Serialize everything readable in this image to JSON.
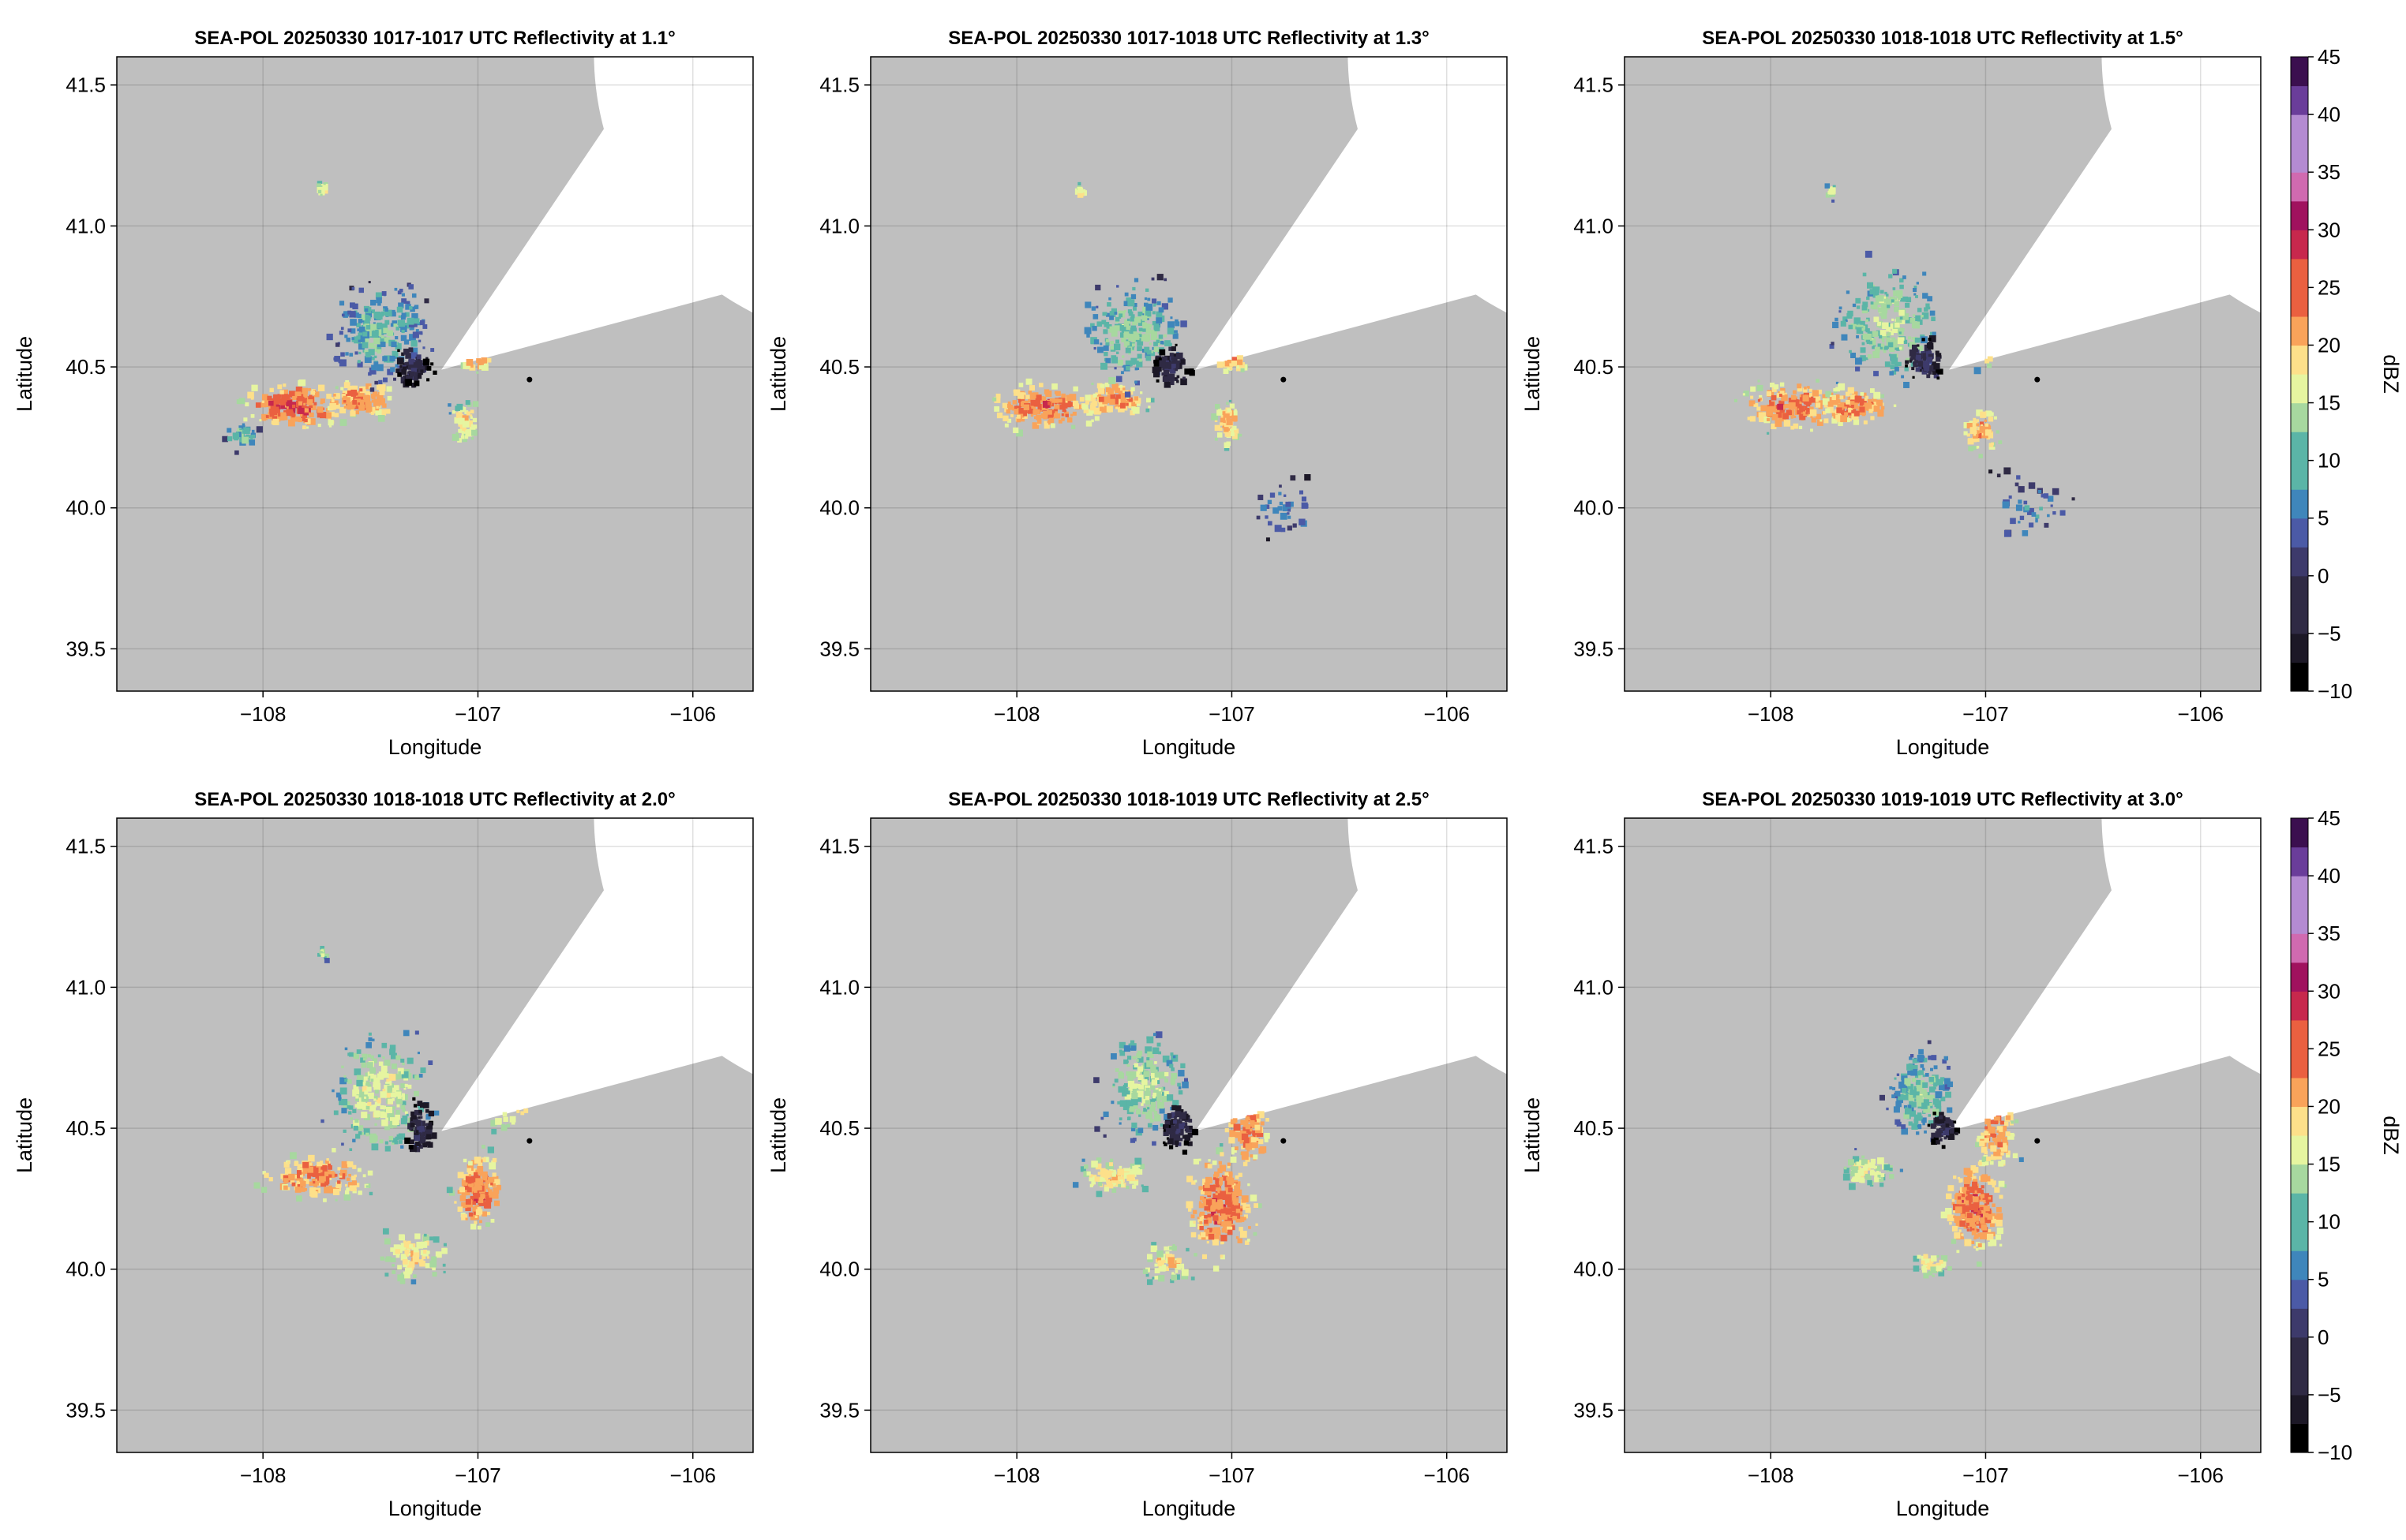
{
  "chart_data": {
    "type": "heatmap",
    "description_axes": {
      "xlabel": "Longitude",
      "ylabel": "Latitude",
      "xlim": [
        -108.68,
        -105.72
      ],
      "ylim": [
        39.35,
        41.6
      ],
      "xticks": [
        -108,
        -107,
        -106
      ],
      "yticks": [
        39.5,
        40.0,
        40.5,
        41.0,
        41.5
      ],
      "xtick_labels": [
        "−108",
        "−107",
        "−106"
      ],
      "ytick_labels": [
        "39.5",
        "40.0",
        "40.5",
        "41.0",
        "41.5"
      ],
      "grid": true
    },
    "radar": {
      "center": [
        -107.17,
        40.49
      ],
      "max_range_lat_deg": 1.03,
      "blocked_sector_deg": [
        15,
        56
      ],
      "marker": [
        -106.76,
        40.455
      ],
      "no_data_color": "#bfbfbf"
    },
    "colorbar": {
      "label": "dBZ",
      "range": [
        -10,
        45
      ],
      "ticks": [
        -10,
        -5,
        0,
        5,
        10,
        15,
        20,
        25,
        30,
        35,
        40,
        45
      ],
      "tick_labels": [
        "−10",
        "−5",
        "0",
        "5",
        "10",
        "15",
        "20",
        "25",
        "30",
        "35",
        "40",
        "45"
      ],
      "placement": "right"
    },
    "panels": [
      {
        "title": "SEA-POL 20250330 1017-1017 UTC Reflectivity at 1.1°",
        "elevation_deg": 1.1,
        "show_colorbar": false,
        "blobs": [
          {
            "lon": -107.85,
            "lat": 40.36,
            "sx": 0.17,
            "sy": 0.06,
            "peak": 29,
            "n": 180
          },
          {
            "lon": -107.55,
            "lat": 40.38,
            "sx": 0.12,
            "sy": 0.05,
            "peak": 27,
            "n": 110
          },
          {
            "lon": -107.45,
            "lat": 40.62,
            "sx": 0.17,
            "sy": 0.13,
            "peak": 14,
            "n": 230
          },
          {
            "lon": -107.3,
            "lat": 40.5,
            "sx": 0.07,
            "sy": 0.06,
            "peak": 2,
            "n": 80
          },
          {
            "lon": -107.06,
            "lat": 40.3,
            "sx": 0.05,
            "sy": 0.06,
            "peak": 22,
            "n": 60
          },
          {
            "lon": -107.0,
            "lat": 40.52,
            "sx": 0.05,
            "sy": 0.03,
            "peak": 25,
            "n": 40
          },
          {
            "lon": -107.72,
            "lat": 41.13,
            "sx": 0.02,
            "sy": 0.02,
            "peak": 21,
            "n": 14
          },
          {
            "lon": -108.1,
            "lat": 40.25,
            "sx": 0.06,
            "sy": 0.04,
            "peak": 14,
            "n": 30
          }
        ]
      },
      {
        "title": "SEA-POL 20250330 1017-1018 UTC Reflectivity at 1.3°",
        "elevation_deg": 1.3,
        "show_colorbar": false,
        "blobs": [
          {
            "lon": -107.88,
            "lat": 40.36,
            "sx": 0.17,
            "sy": 0.06,
            "peak": 28,
            "n": 180
          },
          {
            "lon": -107.55,
            "lat": 40.38,
            "sx": 0.12,
            "sy": 0.05,
            "peak": 26,
            "n": 110
          },
          {
            "lon": -107.45,
            "lat": 40.62,
            "sx": 0.18,
            "sy": 0.14,
            "peak": 15,
            "n": 240
          },
          {
            "lon": -107.28,
            "lat": 40.5,
            "sx": 0.07,
            "sy": 0.06,
            "peak": 2,
            "n": 80
          },
          {
            "lon": -107.02,
            "lat": 40.3,
            "sx": 0.05,
            "sy": 0.06,
            "peak": 24,
            "n": 60
          },
          {
            "lon": -107.0,
            "lat": 40.52,
            "sx": 0.05,
            "sy": 0.03,
            "peak": 25,
            "n": 40
          },
          {
            "lon": -107.7,
            "lat": 41.12,
            "sx": 0.02,
            "sy": 0.02,
            "peak": 20,
            "n": 14
          },
          {
            "lon": -106.75,
            "lat": 40.0,
            "sx": 0.12,
            "sy": 0.08,
            "peak": 10,
            "n": 35
          }
        ]
      },
      {
        "title": "SEA-POL 20250330 1018-1018 UTC Reflectivity at 1.5°",
        "elevation_deg": 1.5,
        "show_colorbar": true,
        "blobs": [
          {
            "lon": -107.9,
            "lat": 40.36,
            "sx": 0.17,
            "sy": 0.06,
            "peak": 28,
            "n": 180
          },
          {
            "lon": -107.6,
            "lat": 40.36,
            "sx": 0.12,
            "sy": 0.05,
            "peak": 27,
            "n": 110
          },
          {
            "lon": -107.45,
            "lat": 40.65,
            "sx": 0.18,
            "sy": 0.15,
            "peak": 17,
            "n": 260
          },
          {
            "lon": -107.28,
            "lat": 40.52,
            "sx": 0.07,
            "sy": 0.06,
            "peak": 3,
            "n": 80
          },
          {
            "lon": -107.02,
            "lat": 40.28,
            "sx": 0.06,
            "sy": 0.07,
            "peak": 25,
            "n": 70
          },
          {
            "lon": -107.0,
            "lat": 40.55,
            "sx": 0.06,
            "sy": 0.04,
            "peak": 24,
            "n": 45
          },
          {
            "lon": -107.72,
            "lat": 41.12,
            "sx": 0.02,
            "sy": 0.02,
            "peak": 20,
            "n": 14
          },
          {
            "lon": -106.8,
            "lat": 40.0,
            "sx": 0.14,
            "sy": 0.1,
            "peak": 10,
            "n": 40
          }
        ]
      },
      {
        "title": "SEA-POL 20250330 1018-1018 UTC Reflectivity at 2.0°",
        "elevation_deg": 2.0,
        "show_colorbar": false,
        "blobs": [
          {
            "lon": -107.75,
            "lat": 40.33,
            "sx": 0.18,
            "sy": 0.06,
            "peak": 27,
            "n": 170
          },
          {
            "lon": -107.45,
            "lat": 40.62,
            "sx": 0.17,
            "sy": 0.16,
            "peak": 19,
            "n": 260
          },
          {
            "lon": -107.27,
            "lat": 40.5,
            "sx": 0.06,
            "sy": 0.07,
            "peak": 2,
            "n": 90
          },
          {
            "lon": -107.0,
            "lat": 40.28,
            "sx": 0.08,
            "sy": 0.1,
            "peak": 28,
            "n": 150
          },
          {
            "lon": -107.3,
            "lat": 40.05,
            "sx": 0.12,
            "sy": 0.07,
            "peak": 22,
            "n": 90
          },
          {
            "lon": -106.85,
            "lat": 40.6,
            "sx": 0.09,
            "sy": 0.08,
            "peak": 24,
            "n": 70
          },
          {
            "lon": -107.72,
            "lat": 41.12,
            "sx": 0.02,
            "sy": 0.02,
            "peak": 17,
            "n": 12
          }
        ]
      },
      {
        "title": "SEA-POL 20250330 1018-1019 UTC Reflectivity at 2.5°",
        "elevation_deg": 2.5,
        "show_colorbar": false,
        "blobs": [
          {
            "lon": -107.55,
            "lat": 40.33,
            "sx": 0.13,
            "sy": 0.05,
            "peak": 22,
            "n": 100
          },
          {
            "lon": -107.4,
            "lat": 40.65,
            "sx": 0.15,
            "sy": 0.14,
            "peak": 17,
            "n": 220
          },
          {
            "lon": -107.25,
            "lat": 40.5,
            "sx": 0.06,
            "sy": 0.07,
            "peak": 2,
            "n": 80
          },
          {
            "lon": -107.05,
            "lat": 40.22,
            "sx": 0.12,
            "sy": 0.14,
            "peak": 28,
            "n": 260
          },
          {
            "lon": -106.92,
            "lat": 40.5,
            "sx": 0.08,
            "sy": 0.1,
            "peak": 27,
            "n": 120
          },
          {
            "lon": -107.3,
            "lat": 40.02,
            "sx": 0.1,
            "sy": 0.05,
            "peak": 22,
            "n": 60
          }
        ]
      },
      {
        "title": "SEA-POL 20250330 1019-1019 UTC Reflectivity at 3.0°",
        "elevation_deg": 3.0,
        "show_colorbar": true,
        "blobs": [
          {
            "lon": -107.55,
            "lat": 40.35,
            "sx": 0.1,
            "sy": 0.05,
            "peak": 20,
            "n": 70
          },
          {
            "lon": -107.3,
            "lat": 40.62,
            "sx": 0.12,
            "sy": 0.12,
            "peak": 15,
            "n": 180
          },
          {
            "lon": -107.2,
            "lat": 40.5,
            "sx": 0.05,
            "sy": 0.05,
            "peak": 2,
            "n": 60
          },
          {
            "lon": -107.05,
            "lat": 40.22,
            "sx": 0.1,
            "sy": 0.13,
            "peak": 28,
            "n": 240
          },
          {
            "lon": -106.95,
            "lat": 40.48,
            "sx": 0.07,
            "sy": 0.1,
            "peak": 26,
            "n": 110
          },
          {
            "lon": -107.25,
            "lat": 40.02,
            "sx": 0.07,
            "sy": 0.04,
            "peak": 21,
            "n": 40
          }
        ]
      }
    ]
  },
  "colors": {
    "scale": [
      "#000000",
      "#1c1826",
      "#2f2a44",
      "#3d3a6b",
      "#4b5aa6",
      "#3f86bb",
      "#5bb5a7",
      "#a7d89f",
      "#e6f5a0",
      "#fde08a",
      "#f9a35a",
      "#ea6040",
      "#c7284d",
      "#a0125e",
      "#d06ab0",
      "#b48bd2",
      "#6a3d9a",
      "#3b0f4f"
    ]
  }
}
